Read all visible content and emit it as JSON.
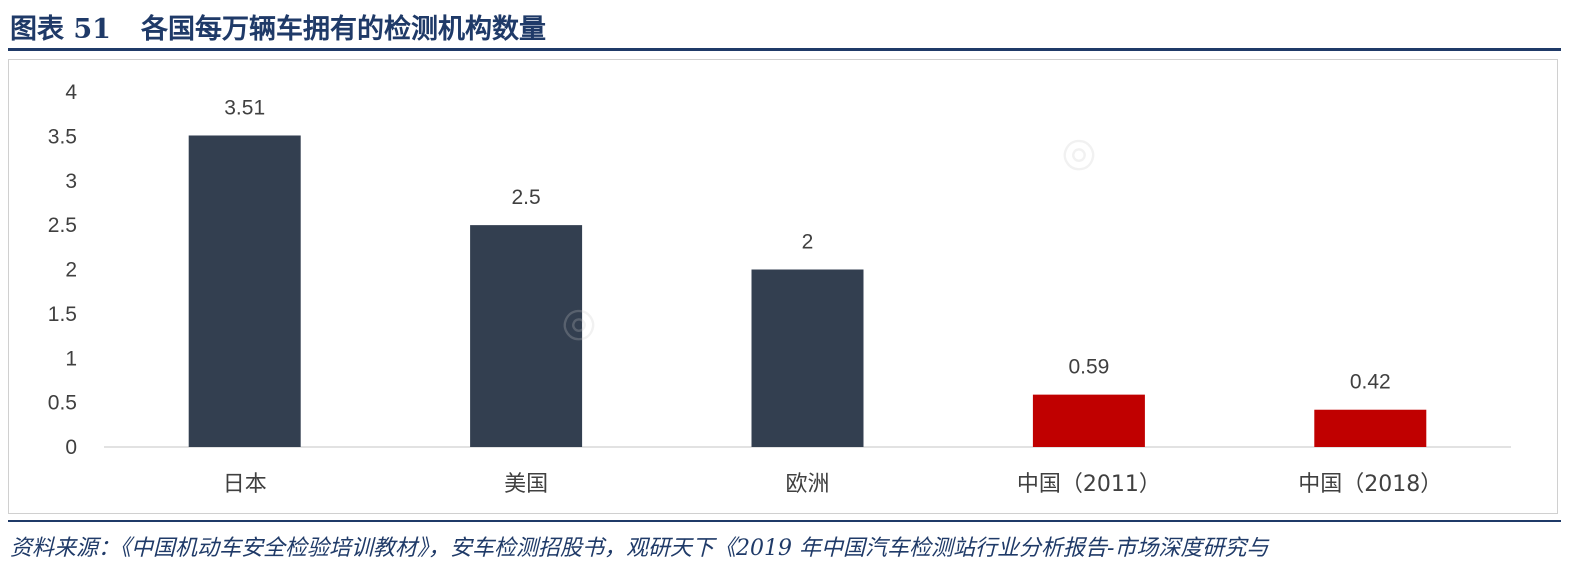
{
  "header": {
    "figure_label": "图表 51",
    "title": "各国每万辆车拥有的检测机构数量"
  },
  "source": "资料来源：《中国机动车安全检验培训教材》，安车检测招股书，观研天下《2019 年中国汽车检测站行业分析报告-市场深度研究与",
  "chart_data": {
    "type": "bar",
    "categories": [
      "日本",
      "美国",
      "欧洲",
      "中国（2011）",
      "中国（2018）"
    ],
    "values": [
      3.51,
      2.5,
      2,
      0.59,
      0.42
    ],
    "data_labels": [
      "3.51",
      "2.5",
      "2",
      "0.59",
      "0.42"
    ],
    "bar_colors": [
      "#333f50",
      "#333f50",
      "#333f50",
      "#c00000",
      "#c00000"
    ],
    "ylim": [
      0,
      4
    ],
    "yticks": [
      0,
      0.5,
      1,
      1.5,
      2,
      2.5,
      3,
      3.5,
      4
    ],
    "ytick_labels": [
      "0",
      "0.5",
      "1",
      "1.5",
      "2",
      "2.5",
      "3",
      "3.5",
      "4"
    ],
    "grid": false,
    "title": "",
    "xlabel": "",
    "ylabel": ""
  },
  "colors": {
    "title": "#1f3a68",
    "axis": "#d9d9d9",
    "text": "#404040"
  }
}
